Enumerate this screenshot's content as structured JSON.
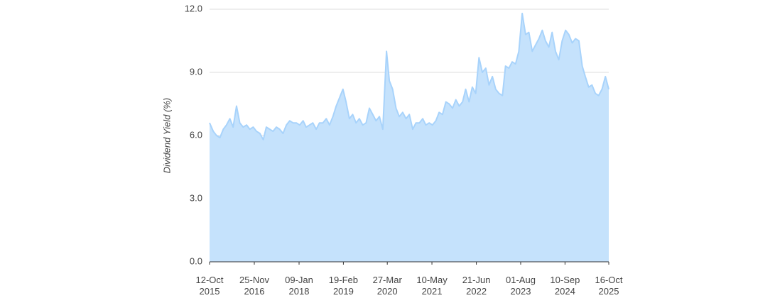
{
  "chart_data": {
    "type": "area",
    "y_label": "Dividend Yield (%)",
    "color": "#a8d3fb",
    "fill": "#c5e2fc",
    "grid": true,
    "ylim": [
      0,
      12
    ],
    "yticks": [
      {
        "value": 0,
        "label": "0.0"
      },
      {
        "value": 3,
        "label": "3.0"
      },
      {
        "value": 6,
        "label": "6.0"
      },
      {
        "value": 9,
        "label": "9.0"
      },
      {
        "value": 12,
        "label": "12.0"
      }
    ],
    "xlim": [
      "2015-10-12",
      "2025-10-16"
    ],
    "xticks": [
      {
        "value": "2015-10-12",
        "label": "12-Oct\n2015"
      },
      {
        "value": "2016-11-25",
        "label": "25-Nov\n2016"
      },
      {
        "value": "2018-01-09",
        "label": "09-Jan\n2018"
      },
      {
        "value": "2019-02-19",
        "label": "19-Feb\n2019"
      },
      {
        "value": "2020-03-27",
        "label": "27-Mar\n2020"
      },
      {
        "value": "2021-05-10",
        "label": "10-May\n2021"
      },
      {
        "value": "2022-06-21",
        "label": "21-Jun\n2022"
      },
      {
        "value": "2023-08-01",
        "label": "01-Aug\n2023"
      },
      {
        "value": "2024-09-10",
        "label": "10-Sep\n2024"
      },
      {
        "value": "2025-10-16",
        "label": "16-Oct\n2025"
      }
    ],
    "x": [
      "2015-10-12",
      "2015-11-15",
      "2015-12-15",
      "2016-01-15",
      "2016-02-15",
      "2016-03-15",
      "2016-04-15",
      "2016-05-15",
      "2016-06-15",
      "2016-07-15",
      "2016-08-15",
      "2016-09-15",
      "2016-10-15",
      "2016-11-15",
      "2016-12-15",
      "2017-01-15",
      "2017-02-15",
      "2017-03-15",
      "2017-04-15",
      "2017-05-15",
      "2017-06-15",
      "2017-07-15",
      "2017-08-15",
      "2017-09-15",
      "2017-10-15",
      "2017-11-15",
      "2017-12-15",
      "2018-01-15",
      "2018-02-15",
      "2018-03-15",
      "2018-04-15",
      "2018-05-15",
      "2018-06-15",
      "2018-07-15",
      "2018-08-15",
      "2018-09-15",
      "2018-10-15",
      "2018-11-15",
      "2018-12-15",
      "2019-01-15",
      "2019-02-15",
      "2019-03-15",
      "2019-04-15",
      "2019-05-15",
      "2019-06-15",
      "2019-07-15",
      "2019-08-15",
      "2019-09-15",
      "2019-10-15",
      "2019-11-15",
      "2019-12-15",
      "2020-01-15",
      "2020-02-15",
      "2020-03-20",
      "2020-04-15",
      "2020-05-15",
      "2020-06-15",
      "2020-07-15",
      "2020-08-15",
      "2020-09-15",
      "2020-10-15",
      "2020-11-15",
      "2020-12-15",
      "2021-01-15",
      "2021-02-15",
      "2021-03-15",
      "2021-04-15",
      "2021-05-15",
      "2021-06-15",
      "2021-07-15",
      "2021-08-15",
      "2021-09-15",
      "2021-10-15",
      "2021-11-15",
      "2021-12-15",
      "2022-01-15",
      "2022-02-15",
      "2022-03-15",
      "2022-04-15",
      "2022-05-15",
      "2022-06-15",
      "2022-07-15",
      "2022-08-15",
      "2022-09-15",
      "2022-10-15",
      "2022-11-15",
      "2022-12-15",
      "2023-01-15",
      "2023-02-15",
      "2023-03-15",
      "2023-04-15",
      "2023-05-15",
      "2023-06-15",
      "2023-07-15",
      "2023-08-15",
      "2023-09-15",
      "2023-10-15",
      "2023-11-15",
      "2023-12-15",
      "2024-01-15",
      "2024-02-15",
      "2024-03-15",
      "2024-04-15",
      "2024-05-15",
      "2024-06-15",
      "2024-07-15",
      "2024-08-15",
      "2024-09-15",
      "2024-10-15",
      "2024-11-15",
      "2024-12-15",
      "2025-01-15",
      "2025-02-15",
      "2025-03-15",
      "2025-04-15",
      "2025-05-15",
      "2025-06-15",
      "2025-07-15",
      "2025-08-15",
      "2025-09-15",
      "2025-10-16"
    ],
    "values": [
      6.6,
      6.2,
      6.0,
      5.9,
      6.3,
      6.5,
      6.8,
      6.4,
      7.4,
      6.6,
      6.4,
      6.5,
      6.3,
      6.4,
      6.2,
      6.1,
      5.8,
      6.4,
      6.3,
      6.2,
      6.4,
      6.3,
      6.1,
      6.5,
      6.7,
      6.6,
      6.6,
      6.5,
      6.7,
      6.4,
      6.5,
      6.6,
      6.3,
      6.6,
      6.6,
      6.8,
      6.5,
      6.9,
      7.4,
      7.8,
      8.2,
      7.6,
      6.8,
      7.0,
      6.6,
      6.8,
      6.5,
      6.6,
      7.3,
      7.0,
      6.7,
      6.9,
      6.3,
      10.0,
      8.6,
      8.2,
      7.3,
      6.9,
      7.1,
      6.8,
      7.0,
      6.3,
      6.6,
      6.6,
      6.8,
      6.5,
      6.6,
      6.5,
      6.7,
      7.1,
      7.0,
      7.6,
      7.5,
      7.3,
      7.7,
      7.4,
      7.6,
      8.2,
      7.6,
      8.3,
      8.0,
      9.7,
      9.0,
      9.2,
      8.4,
      8.8,
      8.2,
      8.0,
      7.9,
      9.3,
      9.2,
      9.5,
      9.4,
      10.0,
      11.8,
      10.8,
      10.9,
      10.0,
      10.3,
      10.6,
      11.0,
      10.5,
      10.2,
      10.9,
      10.0,
      9.6,
      10.5,
      11.0,
      10.8,
      10.4,
      10.6,
      10.5,
      9.3,
      8.8,
      8.3,
      8.4,
      8.0,
      7.9,
      8.2,
      8.8,
      8.2
    ]
  }
}
